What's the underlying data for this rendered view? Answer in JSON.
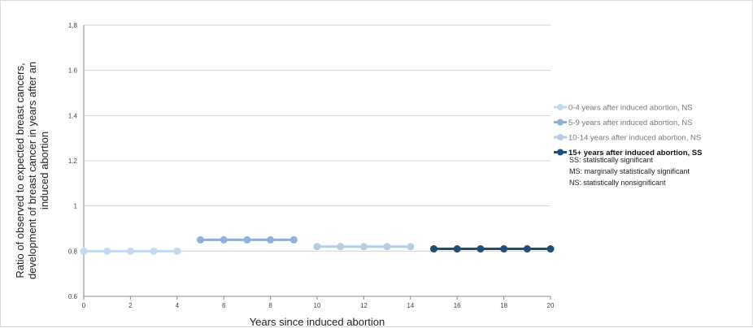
{
  "chart_data": {
    "type": "line",
    "title": "",
    "xlabel": "Years since induced abortion",
    "ylabel_lines": [
      "Ratio of observed to expected breast cancers,",
      "development of breast cancer in years after an",
      "induced abortion"
    ],
    "xlim": [
      0,
      20
    ],
    "ylim": [
      0.6,
      1.8
    ],
    "x_ticks": [
      "0",
      "2",
      "4",
      "6",
      "8",
      "10",
      "12",
      "14",
      "16",
      "18",
      "20"
    ],
    "y_ticks": [
      "0.6",
      "0.8",
      "1",
      "1.2",
      "1.4",
      "1.6",
      "1.8"
    ],
    "grid": "horizontal",
    "legend_position": "right",
    "series": [
      {
        "name": "0-4 years after induced abortion, NS",
        "color": "#c5d9ee",
        "bold": false,
        "x": [
          0,
          1,
          2,
          3,
          4
        ],
        "y": [
          0.8,
          0.8,
          0.8,
          0.8,
          0.8
        ]
      },
      {
        "name": "5-9 years after induced abortion, NS",
        "color": "#8eb0da",
        "bold": false,
        "x": [
          5,
          6,
          7,
          8,
          9
        ],
        "y": [
          0.85,
          0.85,
          0.85,
          0.85,
          0.85
        ]
      },
      {
        "name": "10-14 years after induced abortion, NS",
        "color": "#b8cce4",
        "bold": false,
        "x": [
          10,
          11,
          12,
          13,
          14
        ],
        "y": [
          0.82,
          0.82,
          0.82,
          0.82,
          0.82
        ]
      },
      {
        "name": "15+ years after induced abortion, SS",
        "color": "#1f4e79",
        "bold": true,
        "x": [
          15,
          16,
          17,
          18,
          19,
          20
        ],
        "y": [
          0.81,
          0.81,
          0.81,
          0.81,
          0.81,
          0.81
        ]
      }
    ],
    "notes": [
      "SS: statistically significant",
      "MS: marginally statistically significant",
      "NS: statistically nonsignificant"
    ]
  }
}
